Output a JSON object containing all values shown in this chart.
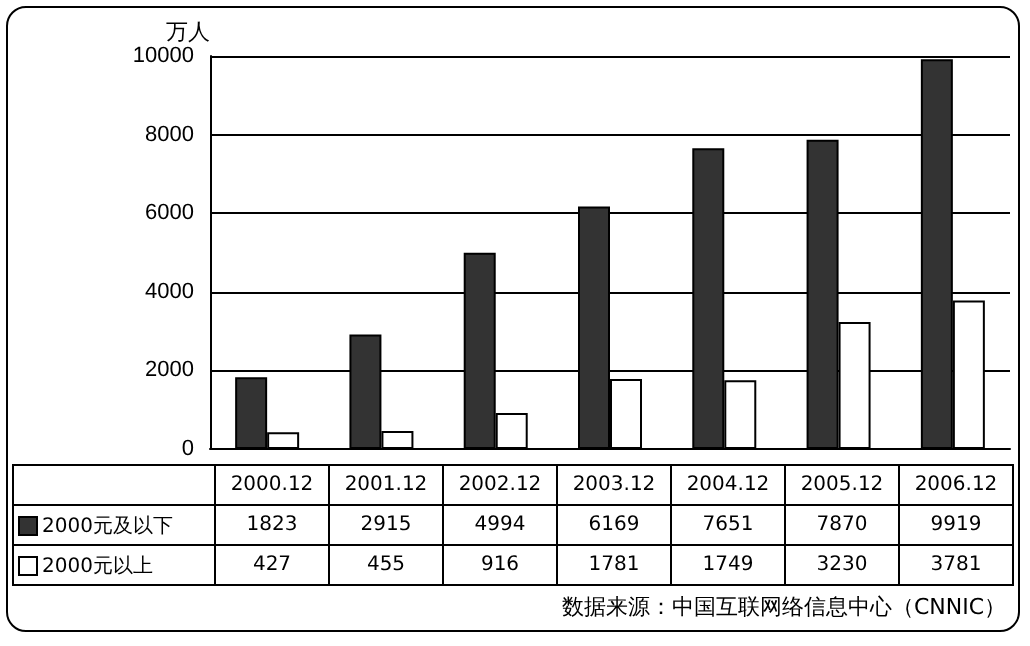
{
  "chart_data": {
    "type": "bar",
    "ylabel": "万人",
    "categories": [
      "2000.12",
      "2001.12",
      "2002.12",
      "2003.12",
      "2004.12",
      "2005.12",
      "2006.12"
    ],
    "series": [
      {
        "name": "2000元及以下",
        "color": "#333333",
        "values": [
          1823,
          2915,
          4994,
          6169,
          7651,
          7870,
          9919
        ]
      },
      {
        "name": "2000元以上",
        "color": "#ffffff",
        "values": [
          427,
          455,
          916,
          1781,
          1749,
          3230,
          3781
        ]
      }
    ],
    "ylim": [
      0,
      10000
    ],
    "yticks": [
      0,
      2000,
      4000,
      6000,
      8000,
      10000
    ],
    "grid": "y",
    "legend": "bottom",
    "data_labels": true,
    "annotations": [
      "数据来源：中国互联网络信息中心（CNNIC）"
    ]
  }
}
